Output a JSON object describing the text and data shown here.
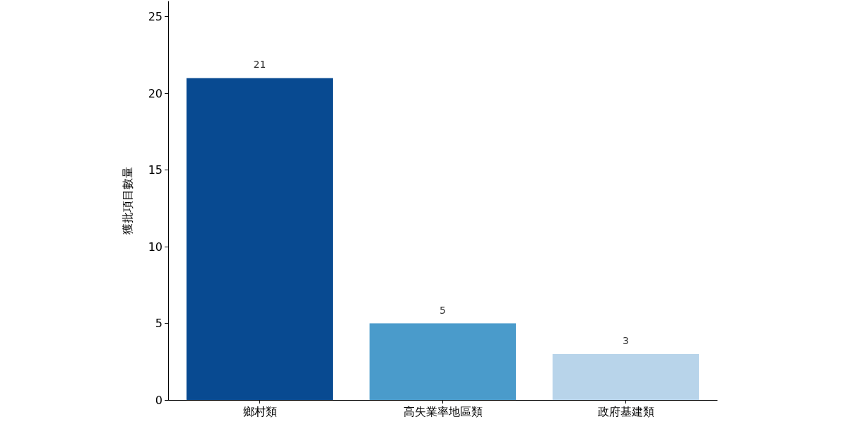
{
  "chart_data": {
    "type": "bar",
    "ylabel": "獲批項目數量",
    "categories": [
      "鄉村類",
      "高失業率地區類",
      "政府基建類"
    ],
    "values": [
      21,
      5,
      3
    ],
    "colors": [
      "#084a91",
      "#4a9bcb",
      "#b8d4ea"
    ],
    "ylim": [
      0,
      26
    ],
    "yticks": [
      0,
      5,
      10,
      15,
      20,
      25
    ],
    "grid": false,
    "data_labels": true
  }
}
